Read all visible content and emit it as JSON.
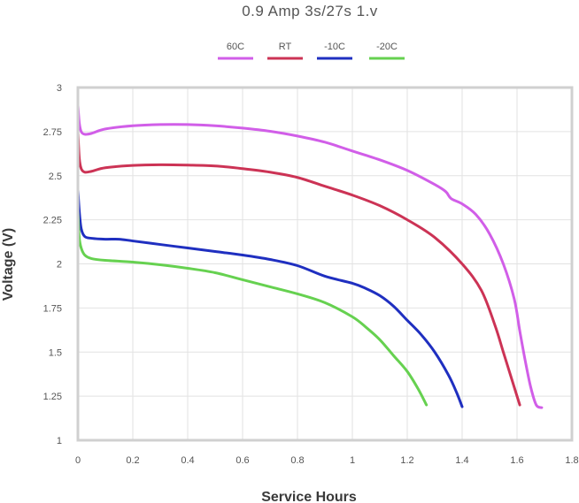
{
  "chart_data": {
    "type": "line",
    "title": "0.9 Amp 3s/27s 1.v",
    "xlabel": "Service Hours",
    "ylabel": "Voltage (V)",
    "xlim": [
      0,
      1.8
    ],
    "ylim": [
      1,
      3
    ],
    "x_ticks": [
      "0",
      "0.2",
      "0.4",
      "0.6",
      "0.8",
      "1",
      "1.2",
      "1.4",
      "1.6",
      "1.8"
    ],
    "y_ticks": [
      "1",
      "1.25",
      "1.5",
      "1.75",
      "2",
      "2.25",
      "2.5",
      "2.75",
      "3"
    ],
    "grid": true,
    "legend_position": "top",
    "series": [
      {
        "name": "60C",
        "color": "#d15ee8",
        "points": [
          [
            0.0,
            2.9
          ],
          [
            0.005,
            2.8
          ],
          [
            0.012,
            2.75
          ],
          [
            0.025,
            2.735
          ],
          [
            0.05,
            2.74
          ],
          [
            0.1,
            2.765
          ],
          [
            0.2,
            2.783
          ],
          [
            0.3,
            2.79
          ],
          [
            0.4,
            2.79
          ],
          [
            0.5,
            2.783
          ],
          [
            0.6,
            2.77
          ],
          [
            0.7,
            2.752
          ],
          [
            0.8,
            2.725
          ],
          [
            0.9,
            2.69
          ],
          [
            1.0,
            2.64
          ],
          [
            1.1,
            2.59
          ],
          [
            1.2,
            2.53
          ],
          [
            1.3,
            2.45
          ],
          [
            1.34,
            2.41
          ],
          [
            1.36,
            2.37
          ],
          [
            1.4,
            2.34
          ],
          [
            1.45,
            2.28
          ],
          [
            1.5,
            2.17
          ],
          [
            1.55,
            2.0
          ],
          [
            1.59,
            1.8
          ],
          [
            1.61,
            1.62
          ],
          [
            1.63,
            1.45
          ],
          [
            1.65,
            1.3
          ],
          [
            1.67,
            1.2
          ],
          [
            1.69,
            1.185
          ]
        ]
      },
      {
        "name": "RT",
        "color": "#cc3355",
        "points": [
          [
            0.0,
            2.75
          ],
          [
            0.005,
            2.6
          ],
          [
            0.012,
            2.54
          ],
          [
            0.025,
            2.52
          ],
          [
            0.05,
            2.525
          ],
          [
            0.1,
            2.545
          ],
          [
            0.2,
            2.558
          ],
          [
            0.3,
            2.562
          ],
          [
            0.4,
            2.56
          ],
          [
            0.5,
            2.555
          ],
          [
            0.6,
            2.54
          ],
          [
            0.7,
            2.52
          ],
          [
            0.8,
            2.49
          ],
          [
            0.9,
            2.44
          ],
          [
            1.0,
            2.39
          ],
          [
            1.1,
            2.33
          ],
          [
            1.2,
            2.25
          ],
          [
            1.3,
            2.15
          ],
          [
            1.4,
            2.0
          ],
          [
            1.47,
            1.85
          ],
          [
            1.52,
            1.65
          ],
          [
            1.55,
            1.5
          ],
          [
            1.58,
            1.35
          ],
          [
            1.6,
            1.25
          ],
          [
            1.61,
            1.2
          ]
        ]
      },
      {
        "name": "-10C",
        "color": "#1f2fc0",
        "points": [
          [
            0.0,
            2.42
          ],
          [
            0.005,
            2.3
          ],
          [
            0.012,
            2.2
          ],
          [
            0.025,
            2.155
          ],
          [
            0.05,
            2.145
          ],
          [
            0.1,
            2.14
          ],
          [
            0.15,
            2.14
          ],
          [
            0.2,
            2.13
          ],
          [
            0.3,
            2.11
          ],
          [
            0.4,
            2.09
          ],
          [
            0.5,
            2.07
          ],
          [
            0.6,
            2.05
          ],
          [
            0.7,
            2.025
          ],
          [
            0.8,
            1.99
          ],
          [
            0.9,
            1.93
          ],
          [
            1.0,
            1.89
          ],
          [
            1.05,
            1.86
          ],
          [
            1.1,
            1.82
          ],
          [
            1.15,
            1.76
          ],
          [
            1.2,
            1.68
          ],
          [
            1.25,
            1.6
          ],
          [
            1.3,
            1.5
          ],
          [
            1.35,
            1.37
          ],
          [
            1.38,
            1.27
          ],
          [
            1.4,
            1.19
          ]
        ]
      },
      {
        "name": "-20C",
        "color": "#66d150",
        "points": [
          [
            0.0,
            2.3
          ],
          [
            0.005,
            2.15
          ],
          [
            0.012,
            2.09
          ],
          [
            0.025,
            2.05
          ],
          [
            0.05,
            2.03
          ],
          [
            0.1,
            2.02
          ],
          [
            0.2,
            2.01
          ],
          [
            0.3,
            1.995
          ],
          [
            0.4,
            1.975
          ],
          [
            0.5,
            1.95
          ],
          [
            0.6,
            1.91
          ],
          [
            0.7,
            1.87
          ],
          [
            0.8,
            1.83
          ],
          [
            0.9,
            1.78
          ],
          [
            1.0,
            1.7
          ],
          [
            1.05,
            1.64
          ],
          [
            1.1,
            1.57
          ],
          [
            1.15,
            1.48
          ],
          [
            1.2,
            1.39
          ],
          [
            1.24,
            1.29
          ],
          [
            1.27,
            1.2
          ]
        ]
      }
    ]
  }
}
